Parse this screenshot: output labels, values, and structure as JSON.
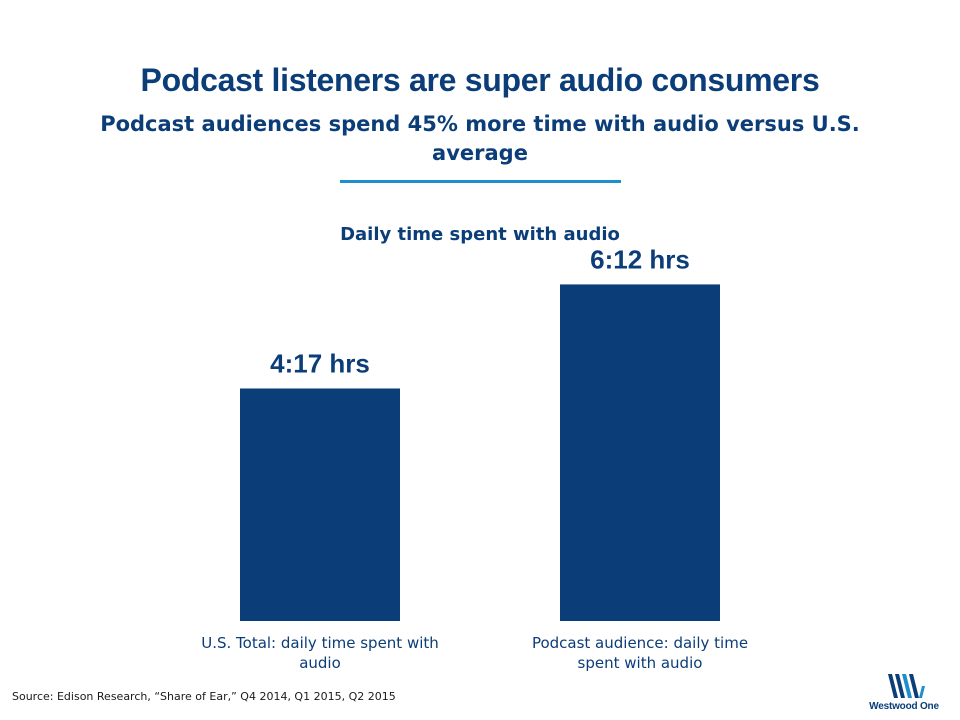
{
  "header": {
    "title": "Podcast listeners are super audio consumers",
    "subtitle": "Podcast audiences spend 45% more time with audio versus U.S. average"
  },
  "chart_data": {
    "type": "bar",
    "title": "Daily time spent with audio",
    "categories": [
      "U.S. Total: daily time spent with audio",
      "Podcast audience: daily time spent with audio"
    ],
    "values": [
      4.2833,
      6.2
    ],
    "data_labels": [
      "4:17 hrs",
      "6:12 hrs"
    ],
    "ylim": [
      0,
      7
    ],
    "grid": false,
    "bar_color": "#0b3d78",
    "xlabel": "",
    "ylabel": ""
  },
  "footer": {
    "source": "Source: Edison Research, “Share of Ear,” Q4 2014, Q1 2015, Q2 2015",
    "logo_text": "Westwood One"
  },
  "colors": {
    "primary": "#0b3d78",
    "accent_rule": "#1d8fcf"
  }
}
